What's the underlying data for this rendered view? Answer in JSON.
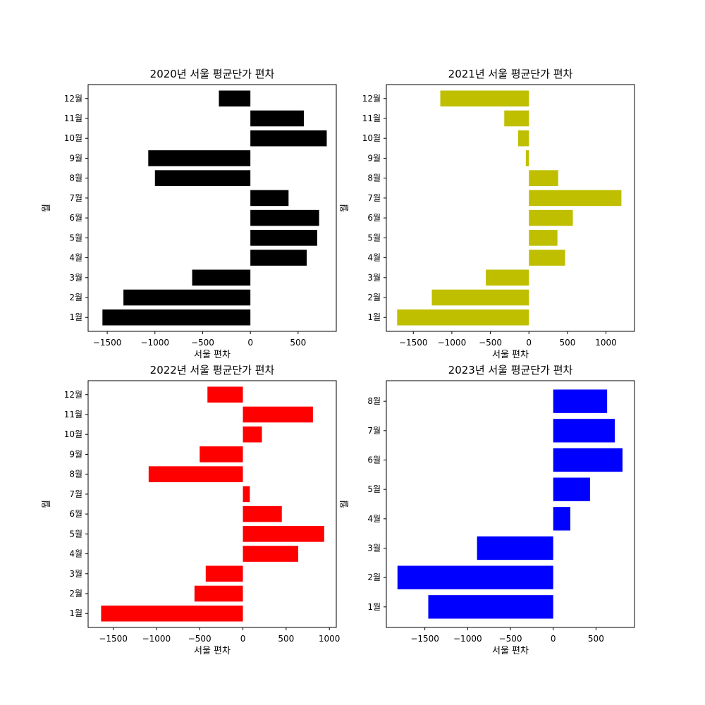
{
  "chart_data": [
    {
      "type": "bar",
      "orientation": "horizontal",
      "title": "2020년 서울 평균단가 편차",
      "xlabel": "서울 편차",
      "ylabel": "월",
      "color": "#000000",
      "xlim": [
        -1700,
        900
      ],
      "xticks": [
        -1500,
        -1000,
        -500,
        0,
        500
      ],
      "categories": [
        "1월",
        "2월",
        "3월",
        "4월",
        "5월",
        "6월",
        "7월",
        "8월",
        "9월",
        "10월",
        "11월",
        "12월"
      ],
      "values": [
        -1550,
        -1330,
        -610,
        590,
        700,
        720,
        400,
        -1000,
        -1070,
        800,
        560,
        -330
      ]
    },
    {
      "type": "bar",
      "orientation": "horizontal",
      "title": "2021년 서울 평균단가 편차",
      "xlabel": "서울 편차",
      "ylabel": "월",
      "color": "#bfbf00",
      "xlim": [
        -1850,
        1370
      ],
      "xticks": [
        -1500,
        -1000,
        -500,
        0,
        500,
        1000
      ],
      "categories": [
        "1월",
        "2월",
        "3월",
        "4월",
        "5월",
        "6월",
        "7월",
        "8월",
        "9월",
        "10월",
        "11월",
        "12월"
      ],
      "values": [
        -1710,
        -1260,
        -560,
        470,
        370,
        570,
        1200,
        380,
        -40,
        -140,
        -320,
        -1150
      ]
    },
    {
      "type": "bar",
      "orientation": "horizontal",
      "title": "2022년 서울 평균단가 편차",
      "xlabel": "서울 편차",
      "ylabel": "월",
      "color": "#ff0000",
      "xlim": [
        -1790,
        1080
      ],
      "xticks": [
        -1500,
        -1000,
        -500,
        0,
        500,
        1000
      ],
      "categories": [
        "1월",
        "2월",
        "3월",
        "4월",
        "5월",
        "6월",
        "7월",
        "8월",
        "9월",
        "10월",
        "11월",
        "12월"
      ],
      "values": [
        -1640,
        -560,
        -430,
        640,
        940,
        450,
        80,
        -1090,
        -500,
        220,
        810,
        -410
      ]
    },
    {
      "type": "bar",
      "orientation": "horizontal",
      "title": "2023년 서울 평균단가 편차",
      "xlabel": "서울 편차",
      "ylabel": "월",
      "color": "#0000ff",
      "xlim": [
        -1950,
        950
      ],
      "xticks": [
        -1500,
        -1000,
        -500,
        0,
        500
      ],
      "categories": [
        "1월",
        "2월",
        "3월",
        "4월",
        "5월",
        "6월",
        "7월",
        "8월"
      ],
      "values": [
        -1460,
        -1820,
        -890,
        200,
        430,
        810,
        720,
        630
      ]
    }
  ]
}
